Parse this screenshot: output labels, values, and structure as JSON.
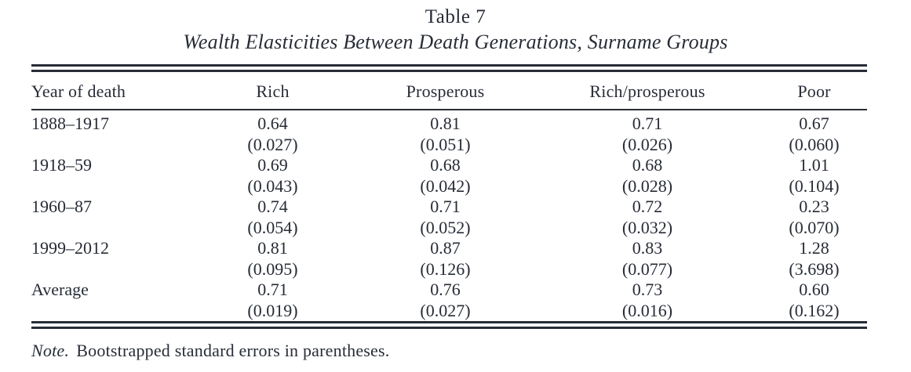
{
  "title": "Table 7",
  "subtitle": "Wealth Elasticities Between Death Generations, Surname Groups",
  "table": {
    "columns": [
      "Year of death",
      "Rich",
      "Prosperous",
      "Rich/prosperous",
      "Poor"
    ],
    "rows": [
      {
        "label": "1888–1917",
        "values": [
          "0.64",
          "0.81",
          "0.71",
          "0.67"
        ],
        "se": [
          "(0.027)",
          "(0.051)",
          "(0.026)",
          "(0.060)"
        ]
      },
      {
        "label": "1918–59",
        "values": [
          "0.69",
          "0.68",
          "0.68",
          "1.01"
        ],
        "se": [
          "(0.043)",
          "(0.042)",
          "(0.028)",
          "(0.104)"
        ]
      },
      {
        "label": "1960–87",
        "values": [
          "0.74",
          "0.71",
          "0.72",
          "0.23"
        ],
        "se": [
          "(0.054)",
          "(0.052)",
          "(0.032)",
          "(0.070)"
        ]
      },
      {
        "label": "1999–2012",
        "values": [
          "0.81",
          "0.87",
          "0.83",
          "1.28"
        ],
        "se": [
          "(0.095)",
          "(0.126)",
          "(0.077)",
          "(3.698)"
        ]
      },
      {
        "label": "Average",
        "values": [
          "0.71",
          "0.76",
          "0.73",
          "0.60"
        ],
        "se": [
          "(0.019)",
          "(0.027)",
          "(0.016)",
          "(0.162)"
        ]
      }
    ]
  },
  "note": {
    "prefix": "Note.",
    "text": "Bootstrapped standard errors in parentheses."
  },
  "colors": {
    "text": "#272c36",
    "rule": "#272c36",
    "background": "#ffffff"
  }
}
